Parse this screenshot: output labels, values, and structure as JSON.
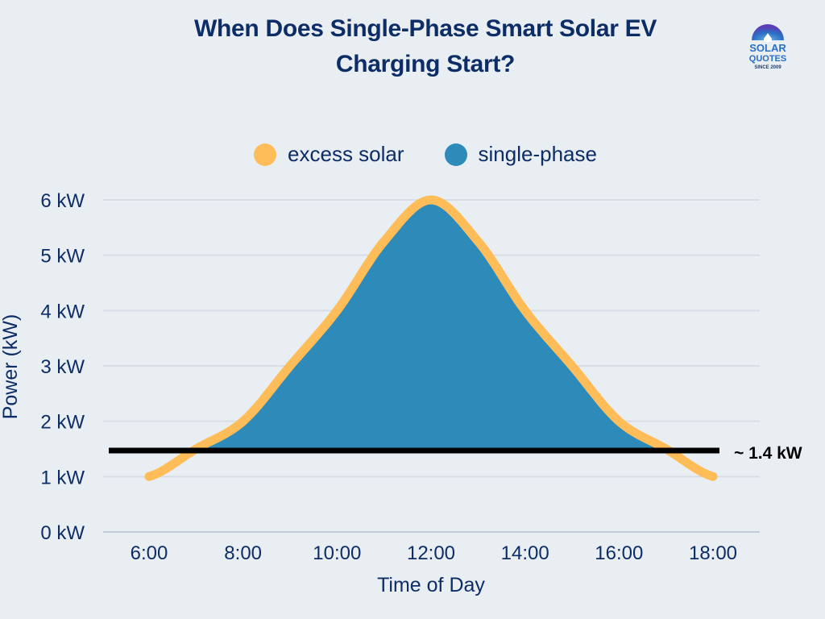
{
  "chart_data": {
    "type": "area",
    "title": "When Does Single-Phase Smart Solar EV Charging Start?",
    "title_lines": [
      "When Does Single-Phase Smart Solar EV",
      "Charging Start?"
    ],
    "xlabel": "Time of Day",
    "ylabel": "Power (kW)",
    "x_ticks": [
      "6:00",
      "8:00",
      "10:00",
      "12:00",
      "14:00",
      "16:00",
      "18:00"
    ],
    "y_ticks": [
      "0 kW",
      "1 kW",
      "2 kW",
      "3 kW",
      "4 kW",
      "5 kW",
      "6 kW"
    ],
    "ylim": [
      0,
      6
    ],
    "xlim_hours": [
      5,
      19
    ],
    "grid": true,
    "legend_position": "top-center",
    "legend": [
      {
        "name": "excess solar",
        "color": "#ffbd59"
      },
      {
        "name": "single-phase",
        "color": "#2d8ab9"
      }
    ],
    "x": [
      6,
      7,
      8,
      9,
      10,
      11,
      12,
      13,
      14,
      15,
      16,
      17,
      18
    ],
    "series": [
      {
        "name": "excess solar",
        "type": "line",
        "color": "#ffbd59",
        "values": [
          1.0,
          1.5,
          2.0,
          3.0,
          4.0,
          5.25,
          6.0,
          5.25,
          4.0,
          3.0,
          2.0,
          1.5,
          1.0
        ]
      },
      {
        "name": "single-phase",
        "type": "area",
        "color": "#2d8ab9",
        "description": "excess solar above the charging threshold",
        "baseline_kw": 1.47
      }
    ],
    "threshold": {
      "value_kw": 1.47,
      "label": "~ 1.4 kW",
      "color": "#000000"
    }
  },
  "branding": {
    "logo_line1": "SOLAR",
    "logo_line2": "QUOTES",
    "logo_line3": "SINCE 2009"
  }
}
